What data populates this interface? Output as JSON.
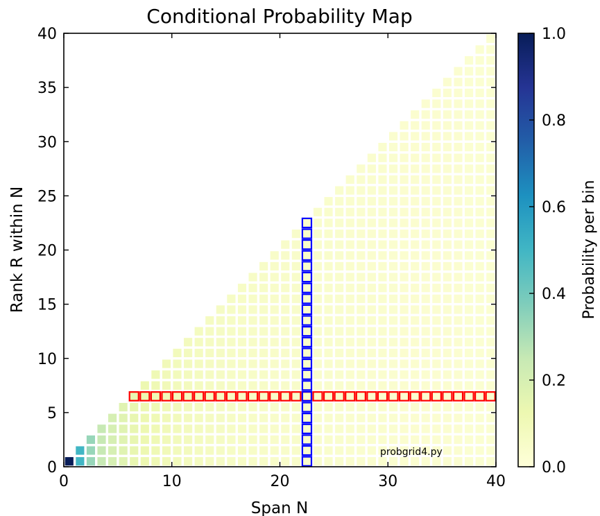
{
  "chart_data": {
    "type": "heatmap",
    "title": "Conditional Probability Map",
    "xlabel": "Span N",
    "ylabel": "Rank R within N",
    "xlim": [
      0,
      40
    ],
    "ylim": [
      0,
      40
    ],
    "x_ticks": [
      "0",
      "10",
      "20",
      "30",
      "40"
    ],
    "y_ticks": [
      "0",
      "5",
      "10",
      "15",
      "20",
      "25",
      "30",
      "35",
      "40"
    ],
    "cells": "one cell per (N, R) with 1 <= R <= N <= 40; value = 1/N",
    "n_max": 40,
    "colorscale": "YlGnBu",
    "colorbar": {
      "label": "Probability per bin",
      "range": [
        0.0,
        1.0
      ],
      "ticks": [
        "0.0",
        "0.2",
        "0.4",
        "0.6",
        "0.8",
        "1.0"
      ]
    },
    "highlights": [
      {
        "kind": "row",
        "rank": 7,
        "from_span": 7,
        "to_span": 40,
        "color": "#ff0000"
      },
      {
        "kind": "column",
        "span": 23,
        "from_rank": 1,
        "to_rank": 23,
        "color": "#0000ff"
      }
    ],
    "annotation": "probgrid4.py",
    "grid": false
  }
}
